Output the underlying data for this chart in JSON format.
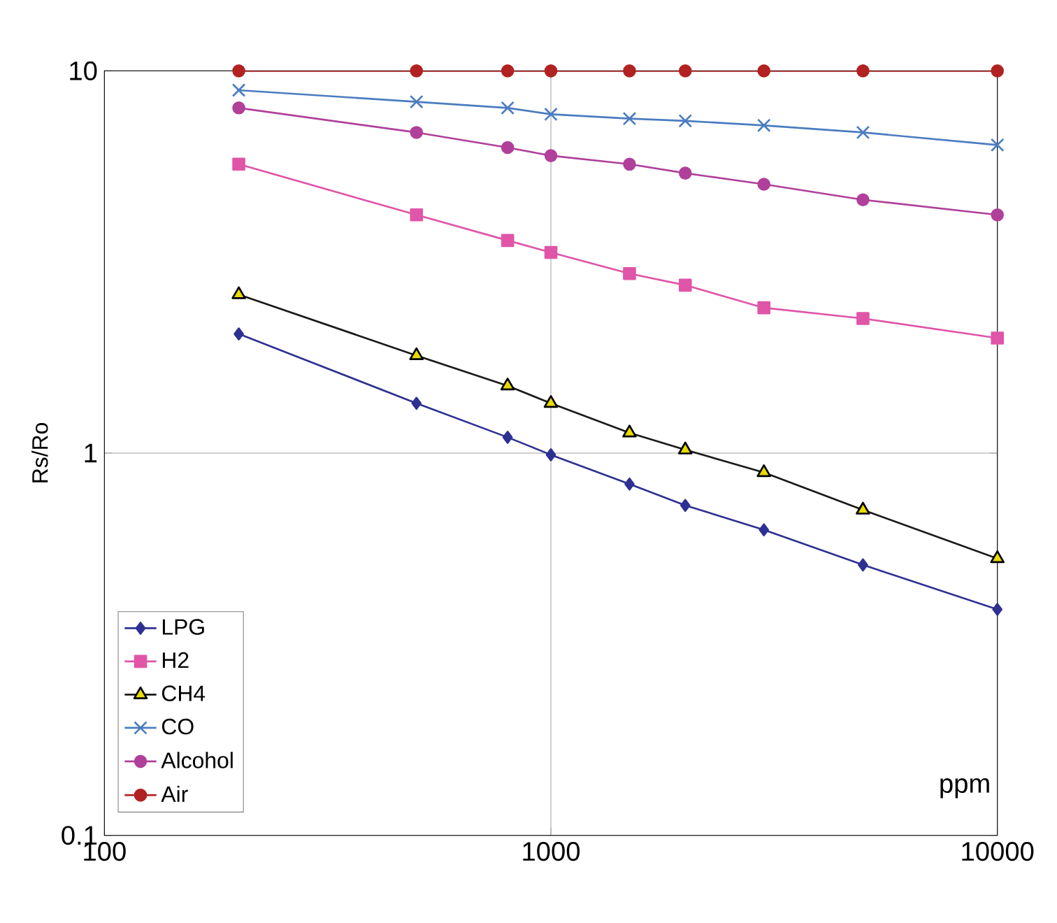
{
  "chart_data": {
    "type": "line",
    "xlabel": "ppm",
    "ylabel": "Rs/Ro",
    "log": "xy",
    "grid": true,
    "legend": "bottom left",
    "xlim": [
      100,
      10000
    ],
    "ylim": [
      0.1,
      10
    ],
    "xticks": [
      100,
      1000,
      10000
    ],
    "yticks": [
      0.1,
      1,
      10
    ],
    "x": [
      200,
      500,
      800,
      1000,
      1500,
      2000,
      3000,
      5000,
      10000
    ],
    "series": [
      {
        "name": "LPG",
        "color": "#2e3192",
        "marker": "diamond",
        "values": [
          2.05,
          1.35,
          1.1,
          0.99,
          0.83,
          0.73,
          0.63,
          0.51,
          0.39
        ]
      },
      {
        "name": "H2",
        "color": "#e055a8",
        "marker": "square",
        "values": [
          5.7,
          4.2,
          3.6,
          3.35,
          2.95,
          2.75,
          2.4,
          2.25,
          2.0
        ]
      },
      {
        "name": "CH4",
        "color": "#1a1a1a",
        "marker": "triangle",
        "values": [
          2.6,
          1.8,
          1.5,
          1.35,
          1.13,
          1.02,
          0.89,
          0.71,
          0.53
        ]
      },
      {
        "name": "CO",
        "color": "#4a7cc0",
        "marker": "cross",
        "values": [
          8.9,
          8.3,
          8.0,
          7.7,
          7.5,
          7.4,
          7.2,
          6.9,
          6.4
        ]
      },
      {
        "name": "Alcohol",
        "color": "#b0409a",
        "marker": "circle",
        "values": [
          8.0,
          6.9,
          6.3,
          6.0,
          5.7,
          5.4,
          5.05,
          4.6,
          4.2
        ]
      },
      {
        "name": "Air",
        "color": "#b22222",
        "marker": "circle",
        "values": [
          10,
          10,
          10,
          10,
          10,
          10,
          10,
          10,
          10
        ]
      }
    ]
  }
}
